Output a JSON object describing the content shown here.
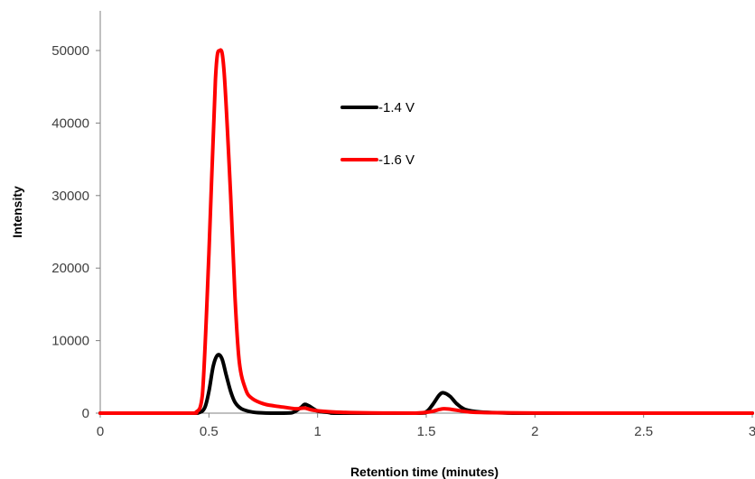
{
  "chart_data": {
    "type": "line",
    "xlabel": "Retention time (minutes)",
    "ylabel": "Intensity",
    "xlim": [
      0,
      3
    ],
    "ylim": [
      0,
      50000
    ],
    "x_ticks": [
      0,
      0.5,
      1,
      1.5,
      2,
      2.5,
      3
    ],
    "x_tick_labels": [
      "0",
      "0.5",
      "1",
      "1.5",
      "2",
      "2.5",
      "3"
    ],
    "y_ticks": [
      0,
      10000,
      20000,
      30000,
      40000,
      50000
    ],
    "y_tick_labels": [
      "0",
      "10000",
      "20000",
      "30000",
      "40000",
      "50000"
    ],
    "grid": false,
    "legend_position": "upper-middle",
    "series": [
      {
        "name": "-1.4 V",
        "color": "#000000",
        "points": [
          [
            0,
            0
          ],
          [
            0.4,
            0
          ],
          [
            0.45,
            30
          ],
          [
            0.48,
            700
          ],
          [
            0.5,
            3000
          ],
          [
            0.52,
            6500
          ],
          [
            0.54,
            8000
          ],
          [
            0.56,
            7500
          ],
          [
            0.58,
            5200
          ],
          [
            0.6,
            3000
          ],
          [
            0.62,
            1500
          ],
          [
            0.65,
            600
          ],
          [
            0.7,
            150
          ],
          [
            0.75,
            30
          ],
          [
            0.8,
            0
          ],
          [
            0.88,
            50
          ],
          [
            0.92,
            700
          ],
          [
            0.94,
            1200
          ],
          [
            0.96,
            1000
          ],
          [
            1.0,
            300
          ],
          [
            1.05,
            100
          ],
          [
            1.1,
            0
          ],
          [
            1.45,
            0
          ],
          [
            1.5,
            200
          ],
          [
            1.53,
            1200
          ],
          [
            1.56,
            2500
          ],
          [
            1.58,
            2800
          ],
          [
            1.61,
            2300
          ],
          [
            1.64,
            1300
          ],
          [
            1.68,
            500
          ],
          [
            1.75,
            150
          ],
          [
            1.85,
            50
          ],
          [
            2.0,
            0
          ],
          [
            3.0,
            0
          ]
        ]
      },
      {
        "name": "-1.6 V",
        "color": "#ff0000",
        "points": [
          [
            0,
            0
          ],
          [
            0.4,
            0
          ],
          [
            0.44,
            100
          ],
          [
            0.47,
            2500
          ],
          [
            0.5,
            22000
          ],
          [
            0.53,
            46000
          ],
          [
            0.55,
            50000
          ],
          [
            0.57,
            47000
          ],
          [
            0.6,
            30000
          ],
          [
            0.62,
            16000
          ],
          [
            0.64,
            7000
          ],
          [
            0.67,
            3200
          ],
          [
            0.7,
            2000
          ],
          [
            0.75,
            1300
          ],
          [
            0.8,
            1000
          ],
          [
            0.85,
            800
          ],
          [
            0.9,
            600
          ],
          [
            0.94,
            700
          ],
          [
            0.98,
            400
          ],
          [
            1.05,
            200
          ],
          [
            1.15,
            80
          ],
          [
            1.3,
            20
          ],
          [
            1.45,
            0
          ],
          [
            1.52,
            200
          ],
          [
            1.58,
            600
          ],
          [
            1.64,
            400
          ],
          [
            1.7,
            150
          ],
          [
            1.8,
            60
          ],
          [
            2.0,
            20
          ],
          [
            2.3,
            0
          ],
          [
            3.0,
            0
          ]
        ]
      }
    ]
  }
}
